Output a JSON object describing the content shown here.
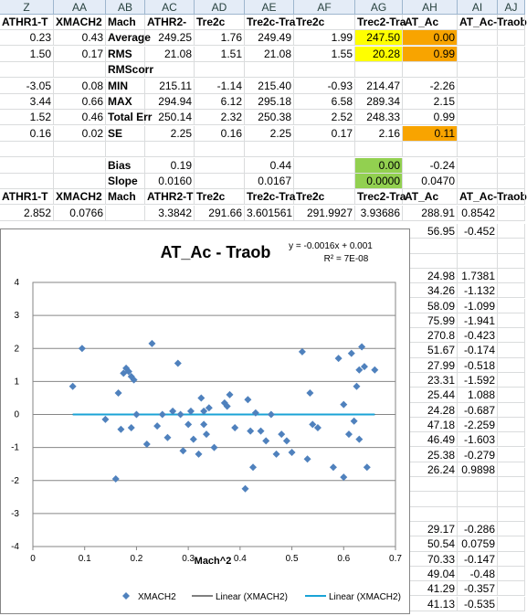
{
  "columns": [
    "Z",
    "AA",
    "AB",
    "AC",
    "AD",
    "AE",
    "AF",
    "AG",
    "AH",
    "AI",
    "AJ"
  ],
  "rows": [
    {
      "cells": [
        "ATHR1-T",
        "XMACH2",
        "Mach",
        "ATHR2-",
        "Tre2c",
        "Tre2c-Tra",
        "Tre2c",
        "Trec2-Tra",
        "AT_Ac",
        "AT_Ac-Traob",
        ""
      ],
      "bold": true
    },
    {
      "cells": [
        "0.23",
        "0.43",
        "Average",
        "249.25",
        "1.76",
        "249.49",
        "1.99",
        "247.50",
        "0.00",
        "",
        ""
      ]
    },
    {
      "cells": [
        "1.50",
        "0.17",
        "RMS",
        "21.08",
        "1.51",
        "21.08",
        "1.55",
        "20.28",
        "0.99",
        "",
        ""
      ]
    },
    {
      "cells": [
        "",
        "",
        "RMScorr",
        "",
        "",
        "",
        "",
        "",
        "",
        "",
        ""
      ]
    },
    {
      "cells": [
        "-3.05",
        "0.08",
        "MIN",
        "215.11",
        "-1.14",
        "215.40",
        "-0.93",
        "214.47",
        "-2.26",
        "",
        ""
      ]
    },
    {
      "cells": [
        "3.44",
        "0.66",
        "MAX",
        "294.94",
        "6.12",
        "295.18",
        "6.58",
        "289.34",
        "2.15",
        "",
        ""
      ]
    },
    {
      "cells": [
        "1.52",
        "0.46",
        "Total Err",
        "250.14",
        "2.32",
        "250.38",
        "2.52",
        "248.33",
        "0.99",
        "",
        ""
      ]
    },
    {
      "cells": [
        "0.16",
        "0.02",
        "SE",
        "2.25",
        "0.16",
        "2.25",
        "0.17",
        "2.16",
        "0.11",
        "",
        ""
      ]
    },
    {
      "cells": [
        "",
        "",
        "",
        "",
        "",
        "",
        "",
        "",
        "",
        "",
        ""
      ]
    },
    {
      "cells": [
        "",
        "",
        "Bias",
        "0.19",
        "",
        "0.44",
        "",
        "0.00",
        "-0.24",
        "",
        ""
      ]
    },
    {
      "cells": [
        "",
        "",
        "Slope",
        "0.0160",
        "",
        "0.0167",
        "",
        "0.0000",
        "0.0470",
        "",
        ""
      ]
    },
    {
      "cells": [
        "ATHR1-T",
        "XMACH2",
        "Mach",
        "ATHR2-T",
        "Tre2c",
        "Tre2c-Tra",
        "Tre2c",
        "Trec2-Tra",
        "AT_Ac",
        "AT_Ac-Traob",
        ""
      ],
      "bold": true
    },
    {
      "cells": [
        "2.852",
        "0.0766",
        "",
        "3.3842",
        "291.66",
        "3.601561",
        "291.9927",
        "3.93686",
        "288.91",
        "0.8542",
        ""
      ]
    }
  ],
  "right_peek": [
    {
      "ah": "56.95",
      "ai": "-0.452"
    },
    {
      "ah": "",
      "ai": ""
    },
    {
      "ah": "",
      "ai": ""
    },
    {
      "ah": "24.98",
      "ai": "1.7381"
    },
    {
      "ah": "34.26",
      "ai": "-1.132"
    },
    {
      "ah": "58.09",
      "ai": "-1.099"
    },
    {
      "ah": "75.99",
      "ai": "-1.941"
    },
    {
      "ah": "270.8",
      "ai": "-0.423"
    },
    {
      "ah": "51.67",
      "ai": "-0.174"
    },
    {
      "ah": "27.99",
      "ai": "-0.518"
    },
    {
      "ah": "23.31",
      "ai": "-1.592"
    },
    {
      "ah": "25.44",
      "ai": "1.088"
    },
    {
      "ah": "24.28",
      "ai": "-0.687"
    },
    {
      "ah": "47.18",
      "ai": "-2.259"
    },
    {
      "ah": "46.49",
      "ai": "-1.603"
    },
    {
      "ah": "25.38",
      "ai": "-0.279"
    },
    {
      "ah": "26.24",
      "ai": "0.9898"
    },
    {
      "ah": "",
      "ai": ""
    },
    {
      "ah": "",
      "ai": ""
    },
    {
      "ah": "",
      "ai": ""
    },
    {
      "ah": "29.17",
      "ai": "-0.286"
    },
    {
      "ah": "50.54",
      "ai": "0.0759"
    },
    {
      "ah": "70.33",
      "ai": "-0.147"
    },
    {
      "ah": "49.04",
      "ai": "-0.48"
    },
    {
      "ah": "41.29",
      "ai": "-0.357"
    },
    {
      "ah": "41.13",
      "ai": "-0.535"
    }
  ],
  "colors": {
    "yellow": "#ffff00",
    "orange": "#f8a400",
    "green": "#92d050",
    "marker": "#4f81bd",
    "trend_black": "#000000",
    "trend_blue": "#1aa3d6"
  },
  "chart_data": {
    "type": "scatter",
    "title": "AT_Ac - Traob",
    "equation": "y = -0.0016x + 0.001",
    "r2": "R² = 7E-08",
    "xlabel": "Mach^2",
    "ylabel": "",
    "xlim": [
      0,
      0.7
    ],
    "ylim": [
      -4,
      4
    ],
    "xticks": [
      "0",
      "0.1",
      "0.2",
      "0.3",
      "0.4",
      "0.5",
      "0.6",
      "0.7"
    ],
    "yticks": [
      "4",
      "3",
      "2",
      "1",
      "0",
      "-1",
      "-2",
      "-3",
      "-4"
    ],
    "grid": "horizontal",
    "legend_position": "bottom",
    "legend": [
      "XMACH2",
      "Linear (XMACH2)",
      "Linear (XMACH2)"
    ],
    "series": [
      {
        "name": "XMACH2",
        "x": [
          0.077,
          0.095,
          0.14,
          0.16,
          0.165,
          0.17,
          0.175,
          0.18,
          0.185,
          0.19,
          0.19,
          0.195,
          0.2,
          0.22,
          0.23,
          0.24,
          0.25,
          0.26,
          0.27,
          0.28,
          0.285,
          0.29,
          0.3,
          0.305,
          0.31,
          0.32,
          0.325,
          0.33,
          0.33,
          0.335,
          0.34,
          0.35,
          0.37,
          0.375,
          0.38,
          0.39,
          0.41,
          0.415,
          0.42,
          0.425,
          0.43,
          0.44,
          0.45,
          0.46,
          0.47,
          0.48,
          0.49,
          0.5,
          0.52,
          0.53,
          0.535,
          0.54,
          0.55,
          0.58,
          0.59,
          0.6,
          0.6,
          0.61,
          0.615,
          0.62,
          0.625,
          0.63,
          0.63,
          0.635,
          0.64,
          0.645,
          0.66
        ],
        "y": [
          0.85,
          2.0,
          -0.15,
          -1.95,
          0.65,
          -0.45,
          1.25,
          1.4,
          1.3,
          -0.4,
          1.15,
          1.05,
          0.0,
          -0.9,
          2.15,
          -0.35,
          0.0,
          -0.7,
          0.1,
          1.55,
          0.0,
          -1.1,
          -0.3,
          0.1,
          -0.75,
          -1.2,
          0.5,
          -0.3,
          0.1,
          -0.6,
          0.2,
          -1.0,
          0.35,
          0.25,
          0.6,
          -0.4,
          -2.25,
          0.45,
          -0.5,
          -1.6,
          0.05,
          -0.5,
          -0.8,
          0.0,
          -1.2,
          -0.6,
          -0.8,
          -1.15,
          1.9,
          -1.35,
          0.65,
          -0.3,
          -0.4,
          -1.6,
          1.7,
          -1.9,
          0.3,
          -0.6,
          1.85,
          -0.2,
          0.85,
          1.35,
          -0.75,
          2.05,
          1.45,
          -1.6,
          1.35
        ]
      }
    ]
  }
}
